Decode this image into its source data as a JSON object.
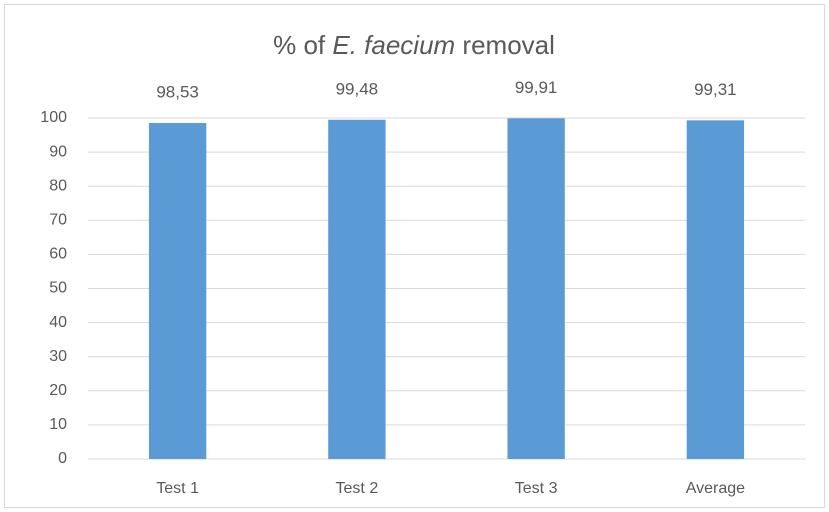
{
  "chart_data": {
    "type": "bar",
    "title_runs": [
      {
        "text": "% of "
      },
      {
        "text": "E. faecium",
        "italic": true
      },
      {
        "text": " removal"
      }
    ],
    "categories": [
      "Test 1",
      "Test 2",
      "Test 3",
      "Average"
    ],
    "values": [
      98.53,
      99.48,
      99.91,
      99.31
    ],
    "value_labels": [
      "98,53",
      "99,48",
      "99,91",
      "99,31"
    ],
    "color": "#5b9bd5",
    "ylim": [
      0,
      100
    ],
    "yticks": [
      0,
      10,
      20,
      30,
      40,
      50,
      60,
      70,
      80,
      90,
      100
    ],
    "grid": true
  }
}
